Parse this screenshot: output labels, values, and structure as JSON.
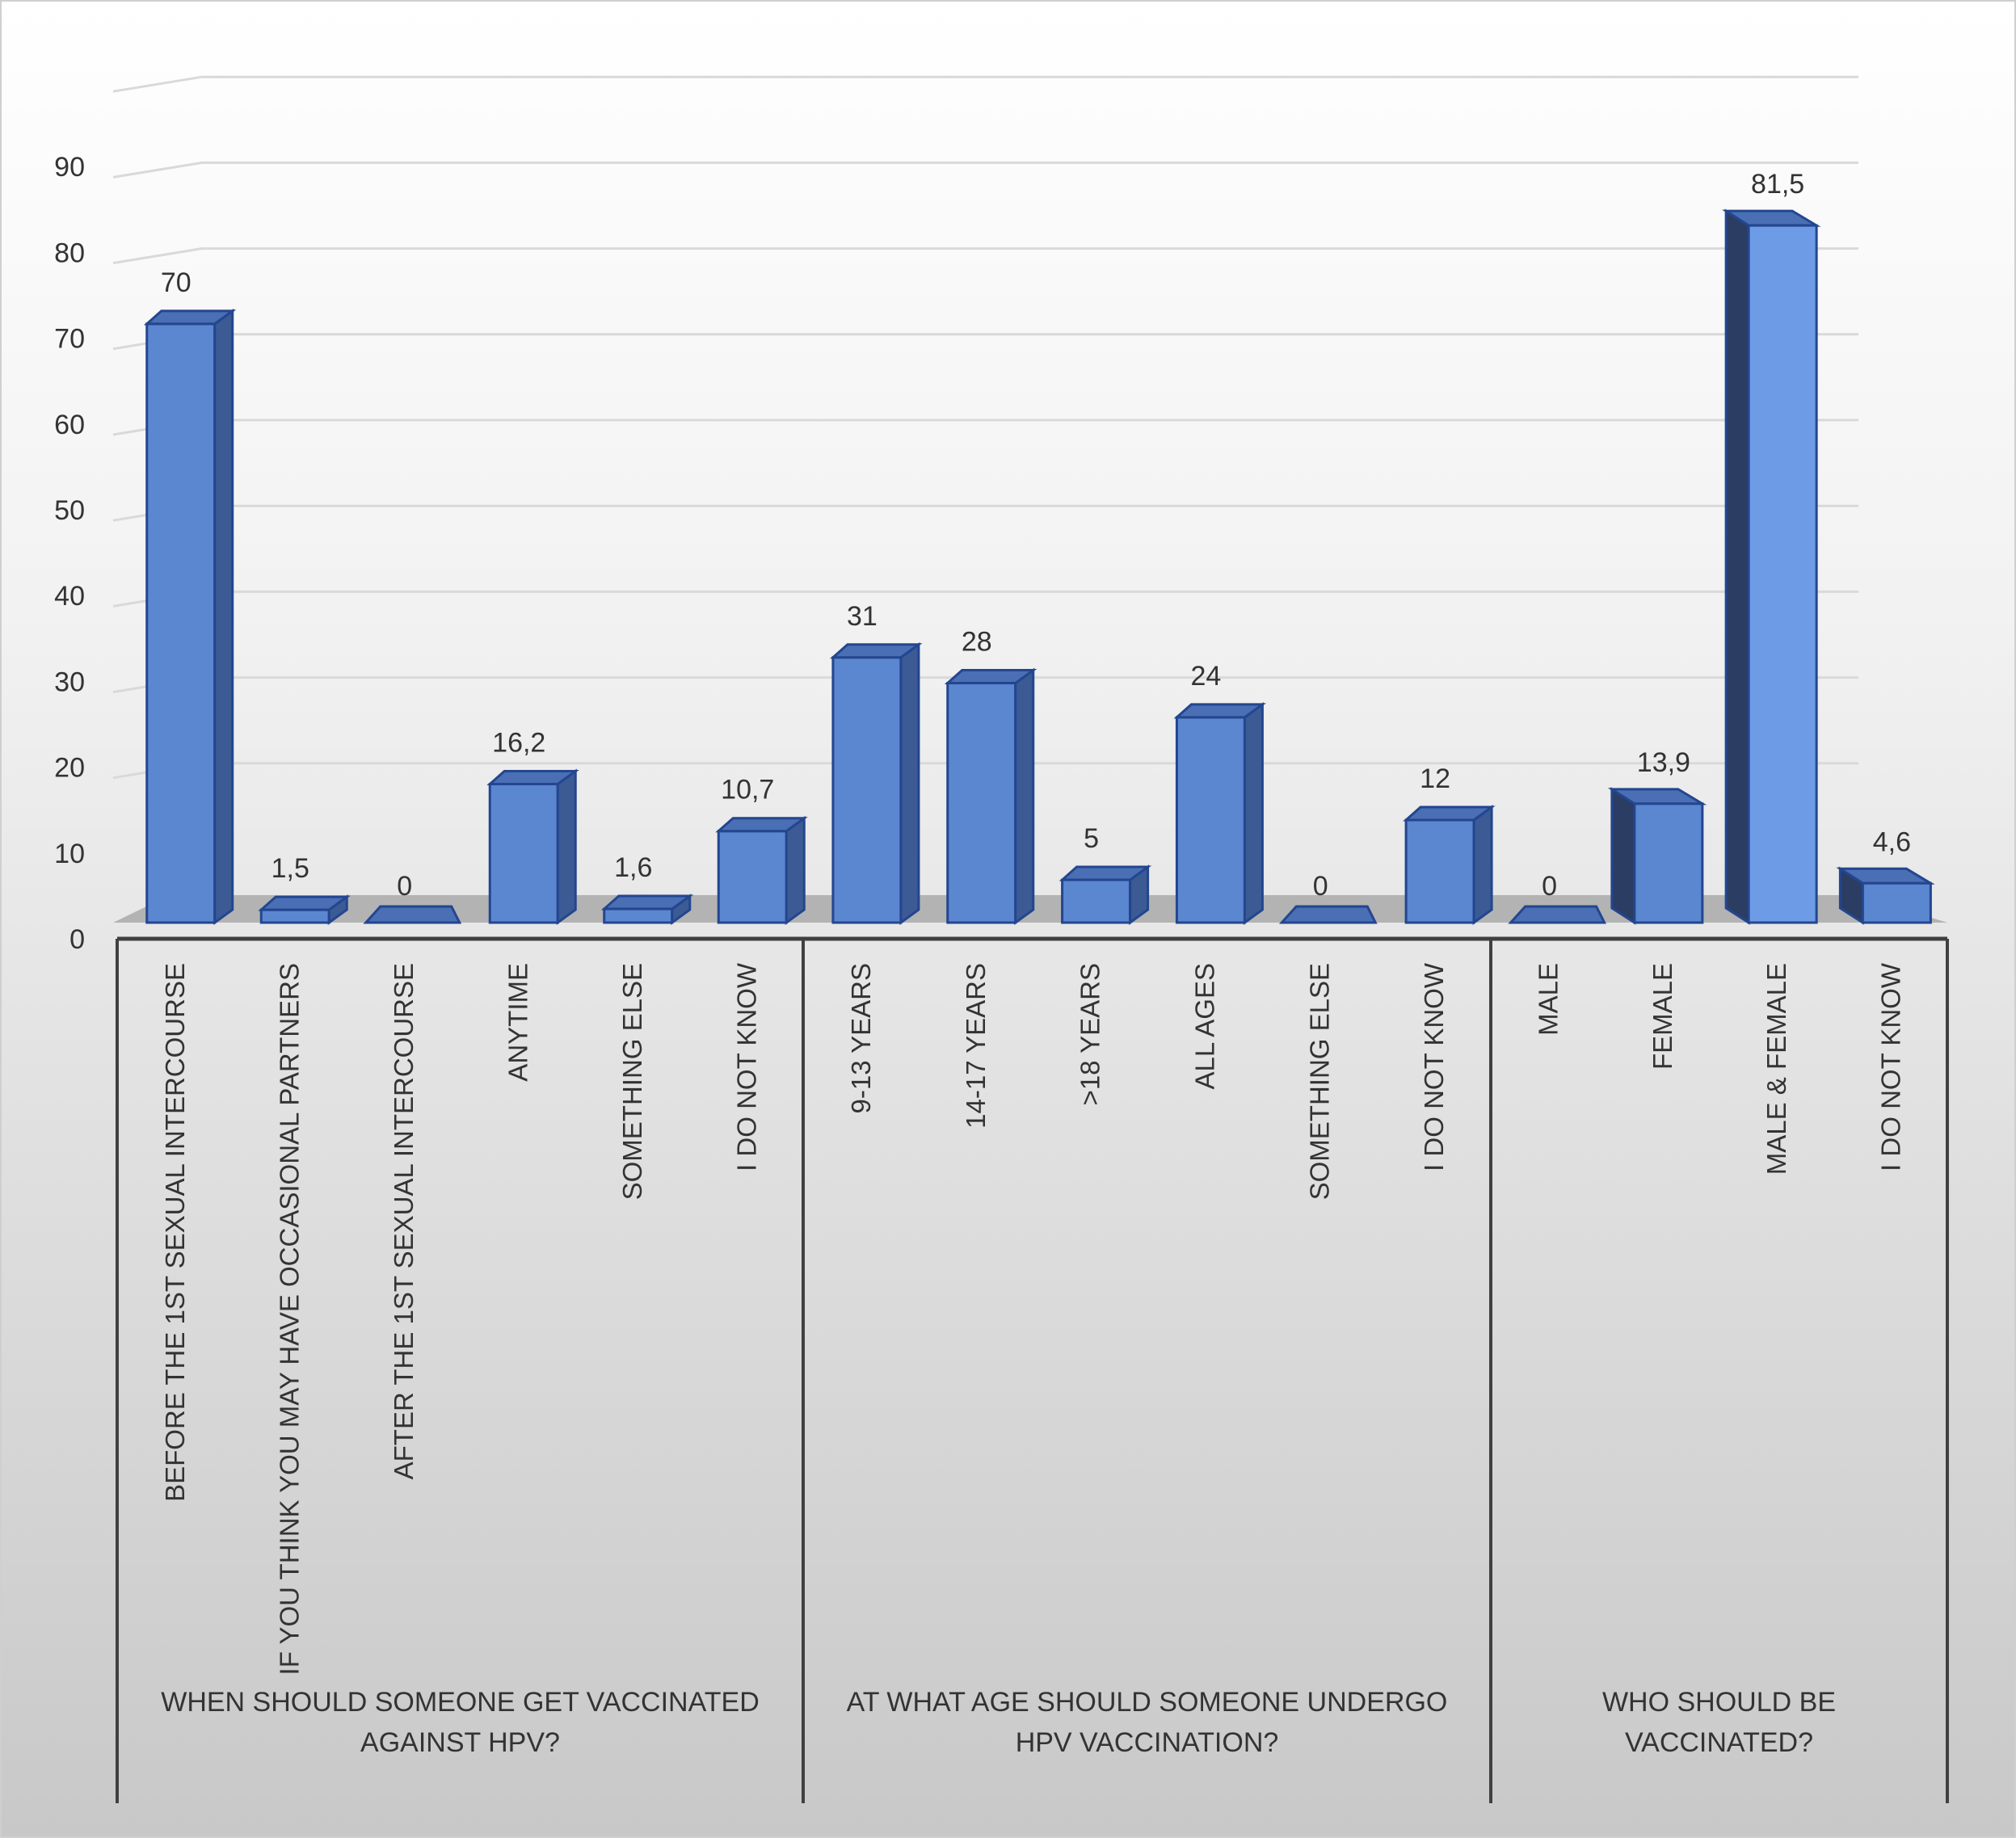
{
  "chart_data": {
    "type": "bar",
    "title": "",
    "xlabel": "",
    "ylabel": "",
    "ylim": [
      0,
      90
    ],
    "yticks": [
      "0",
      "10",
      "20",
      "30",
      "40",
      "50",
      "60",
      "70",
      "80",
      "90"
    ],
    "grid": true,
    "legend": "none",
    "groups": [
      {
        "label": "WHEN SHOULD SOMEONE GET VACCINATED AGAINST HPV?",
        "categories": [
          {
            "label": "BEFORE THE 1ST SEXUAL INTERCOURSE",
            "value": 70,
            "value_label": "70"
          },
          {
            "label": "IF YOU THINK YOU MAY HAVE OCCASIONAL PARTNERS",
            "value": 1.5,
            "value_label": "1,5"
          },
          {
            "label": "AFTER THE 1ST SEXUAL INTERCOURSE",
            "value": 0,
            "value_label": "0"
          },
          {
            "label": "ANYTIME",
            "value": 16.2,
            "value_label": "16,2"
          },
          {
            "label": "SOMETHING ELSE",
            "value": 1.6,
            "value_label": "1,6"
          },
          {
            "label": "I DO NOT KNOW",
            "value": 10.7,
            "value_label": "10,7"
          }
        ]
      },
      {
        "label": "AT WHAT AGE SHOULD SOMEONE UNDERGO HPV VACCINATION?",
        "categories": [
          {
            "label": "9-13 YEARS",
            "value": 31,
            "value_label": "31"
          },
          {
            "label": "14-17 YEARS",
            "value": 28,
            "value_label": "28"
          },
          {
            "label": ">18 YEARS",
            "value": 5,
            "value_label": "5"
          },
          {
            "label": "ALL AGES",
            "value": 24,
            "value_label": "24"
          },
          {
            "label": "SOMETHING ELSE",
            "value": 0,
            "value_label": "0"
          },
          {
            "label": "I DO NOT KNOW",
            "value": 12,
            "value_label": "12"
          }
        ]
      },
      {
        "label": "WHO SHOULD BE VACCINATED?",
        "categories": [
          {
            "label": "MALE",
            "value": 0,
            "value_label": "0"
          },
          {
            "label": "FEMALE",
            "value": 13.9,
            "value_label": "13,9"
          },
          {
            "label": "MALE & FEMALE",
            "value": 81.5,
            "value_label": "81,5"
          },
          {
            "label": "I DO NOT KNOW",
            "value": 4.6,
            "value_label": "4,6"
          }
        ]
      }
    ],
    "colors": {
      "bar_front": "#5b86d0",
      "bar_front_light": "#6d9be6",
      "bar_side": "#3c5a94",
      "bar_side_dark": "#2b3d63",
      "bar_top": "#4a6fb5",
      "bar_stroke": "#23468f",
      "axis": "#404040",
      "text": "#333333",
      "grid": "#d9d9d9",
      "floor": "#b3b3b3"
    }
  }
}
